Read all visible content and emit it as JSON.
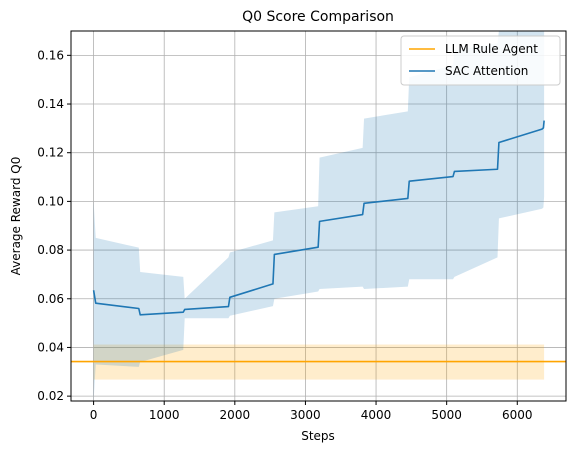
{
  "chart_data": {
    "type": "line",
    "title": "Q0 Score Comparison",
    "xlabel": "Steps",
    "ylabel": "Average Reward Q0",
    "xlim": [
      -320,
      6690
    ],
    "ylim": [
      0.018,
      0.17
    ],
    "xticks": [
      0,
      1000,
      2000,
      3000,
      4000,
      5000,
      6000
    ],
    "xtick_labels": [
      "0",
      "1000",
      "2000",
      "3000",
      "4000",
      "5000",
      "6000"
    ],
    "yticks": [
      0.02,
      0.04,
      0.06,
      0.08,
      0.1,
      0.12,
      0.14,
      0.16
    ],
    "ytick_labels": [
      "0.02",
      "0.04",
      "0.06",
      "0.08",
      "0.10",
      "0.12",
      "0.14",
      "0.16"
    ],
    "grid": true,
    "legend_position": "top-right",
    "series": [
      {
        "name": "LLM Rule Agent",
        "color": "#FFA500",
        "kind": "hline",
        "value": 0.0342,
        "band_x": [
          0,
          6380
        ],
        "band_low": 0.0268,
        "band_high": 0.0412
      },
      {
        "name": "SAC Attention",
        "color": "#1F77B4",
        "kind": "line",
        "x": [
          0,
          30,
          640,
          660,
          1270,
          1290,
          1910,
          1930,
          2540,
          2560,
          3180,
          3200,
          3810,
          3830,
          4450,
          4470,
          5090,
          5110,
          5720,
          5740,
          6350,
          6370,
          6380
        ],
        "y": [
          0.0635,
          0.0582,
          0.056,
          0.0534,
          0.0545,
          0.0556,
          0.0568,
          0.0606,
          0.0661,
          0.0782,
          0.0812,
          0.0918,
          0.0946,
          0.0992,
          0.1012,
          0.1083,
          0.1102,
          0.1123,
          0.1132,
          0.1242,
          0.1297,
          0.1302,
          0.1332
        ],
        "band_low": [
          0.0,
          0.033,
          0.032,
          0.034,
          0.039,
          0.052,
          0.052,
          0.053,
          0.057,
          0.06,
          0.063,
          0.064,
          0.065,
          0.064,
          0.065,
          0.068,
          0.068,
          0.069,
          0.077,
          0.093,
          0.097,
          0.0975,
          0.102
        ],
        "band_high": [
          0.1,
          0.085,
          0.081,
          0.071,
          0.069,
          0.06,
          0.077,
          0.079,
          0.084,
          0.0955,
          0.098,
          0.118,
          0.122,
          0.134,
          0.137,
          0.151,
          0.156,
          0.162,
          0.165,
          0.17,
          0.17,
          0.17,
          0.17
        ]
      }
    ]
  }
}
